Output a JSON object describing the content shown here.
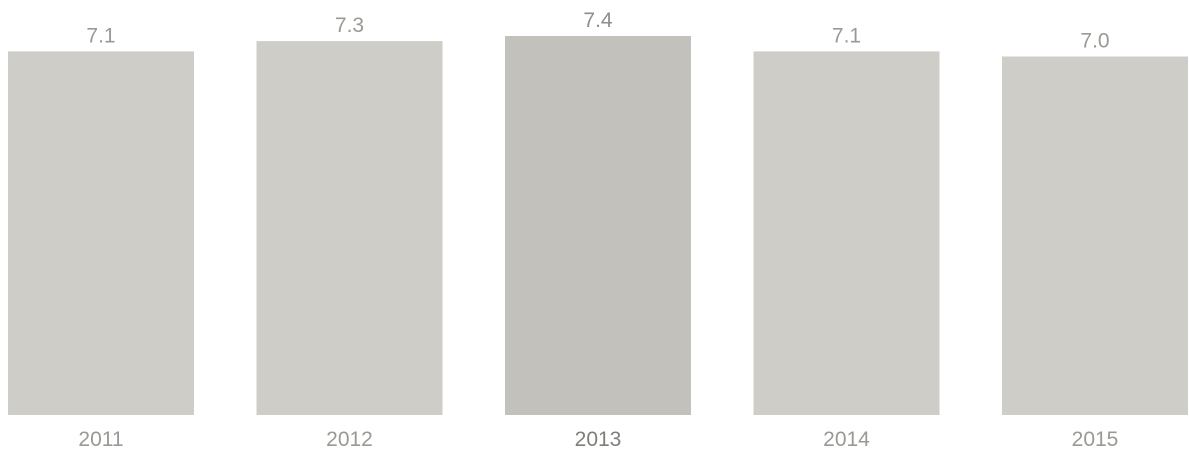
{
  "chart_data": {
    "type": "bar",
    "categories": [
      "2011",
      "2012",
      "2013",
      "2014",
      "2015"
    ],
    "values": [
      7.1,
      7.3,
      7.4,
      7.1,
      7.0
    ],
    "value_labels": [
      "7.1",
      "7.3",
      "7.4",
      "7.1",
      "7.0"
    ],
    "highlighted_category": "2013",
    "title": "",
    "xlabel": "",
    "ylabel": "",
    "ylim": [
      0,
      7.4
    ],
    "grid": false,
    "legend": "none",
    "colors": {
      "bar": "#cfcdc8",
      "bar_highlight": "#c3c1bc",
      "label": "#9a9994"
    }
  }
}
